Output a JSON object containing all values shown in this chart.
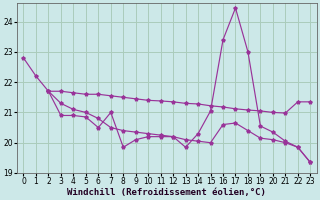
{
  "background_color": "#cce8e8",
  "grid_color": "#aaccbb",
  "line_color": "#993399",
  "marker": "*",
  "xlabel": "Windchill (Refroidissement éolien,°C)",
  "xlabel_fontsize": 6.5,
  "ylim": [
    19,
    24.6
  ],
  "xlim": [
    -0.5,
    23.5
  ],
  "yticks": [
    19,
    20,
    21,
    22,
    23,
    24
  ],
  "xticks": [
    0,
    1,
    2,
    3,
    4,
    5,
    6,
    7,
    8,
    9,
    10,
    11,
    12,
    13,
    14,
    15,
    16,
    17,
    18,
    19,
    20,
    21,
    22,
    23
  ],
  "tick_fontsize": 5.5,
  "series1_x": [
    0,
    1,
    2,
    3,
    4,
    5,
    6,
    7,
    8,
    9,
    10,
    11,
    12,
    13,
    14,
    15,
    16,
    17,
    18,
    19,
    20,
    21,
    22,
    23
  ],
  "series1_y": [
    22.8,
    22.2,
    21.7,
    20.9,
    20.9,
    20.85,
    20.5,
    21.0,
    19.85,
    20.1,
    20.2,
    20.2,
    20.2,
    19.85,
    20.3,
    21.05,
    23.4,
    24.45,
    23.0,
    20.55,
    20.35,
    20.05,
    19.85,
    19.35
  ],
  "series2_x": [
    2,
    3,
    4,
    5,
    6,
    7,
    8,
    9,
    10,
    11,
    12,
    13,
    14,
    15,
    16,
    17,
    18,
    19,
    20,
    21,
    22,
    23
  ],
  "series2_y": [
    21.7,
    21.7,
    21.65,
    21.6,
    21.6,
    21.55,
    21.5,
    21.45,
    21.4,
    21.38,
    21.35,
    21.3,
    21.28,
    21.22,
    21.18,
    21.12,
    21.08,
    21.05,
    21.0,
    20.98,
    21.35,
    21.35
  ],
  "series3_x": [
    2,
    3,
    4,
    5,
    6,
    7,
    8,
    9,
    10,
    11,
    12,
    13,
    14,
    15,
    16,
    17,
    18,
    19,
    20,
    21,
    22,
    23
  ],
  "series3_y": [
    21.7,
    21.3,
    21.1,
    21.0,
    20.8,
    20.5,
    20.4,
    20.35,
    20.3,
    20.25,
    20.2,
    20.1,
    20.05,
    20.0,
    20.6,
    20.65,
    20.4,
    20.15,
    20.1,
    20.0,
    19.85,
    19.35
  ]
}
